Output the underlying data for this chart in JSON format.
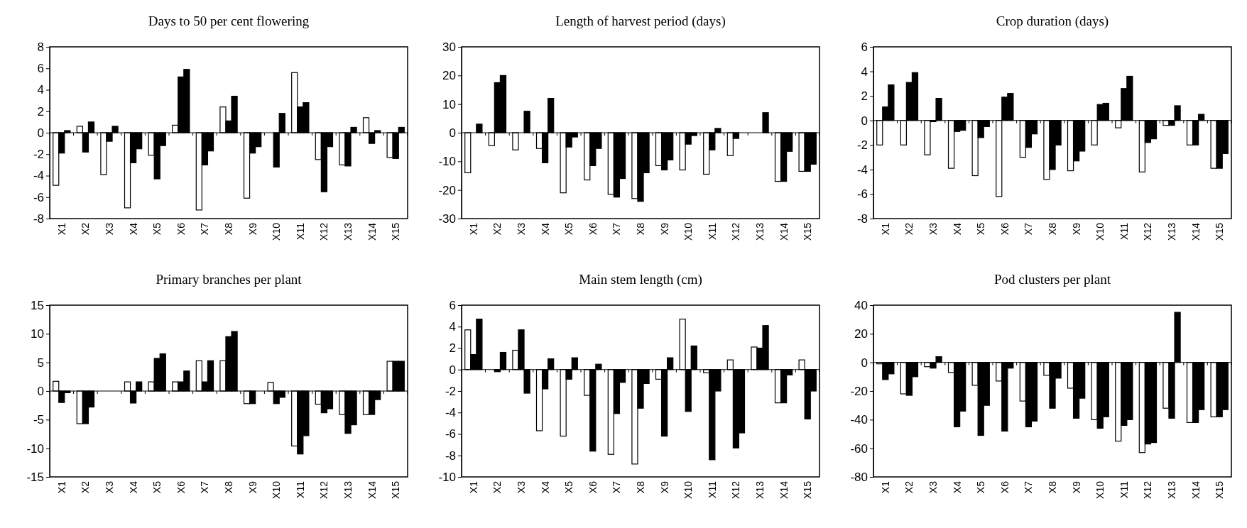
{
  "chart_data": [
    {
      "type": "bar",
      "title": "Days to 50 per cent flowering",
      "categories": [
        "X1",
        "X2",
        "X3",
        "X4",
        "X5",
        "X6",
        "X7",
        "X8",
        "X9",
        "X10",
        "X11",
        "X12",
        "X13",
        "X14",
        "X15"
      ],
      "ylim": [
        -8,
        8
      ],
      "yticks": [
        -8,
        -6,
        -4,
        -2,
        0,
        2,
        4,
        6,
        8
      ],
      "series": [
        {
          "color": "#ffffff",
          "values": [
            -4.9,
            0.6,
            -3.9,
            -7.0,
            -2.1,
            0.7,
            -7.2,
            2.4,
            -6.1,
            0,
            5.6,
            -2.5,
            -3.0,
            1.4,
            -2.3
          ]
        },
        {
          "color": "#000000",
          "values": [
            -1.9,
            -1.8,
            -0.8,
            -2.8,
            -4.3,
            5.2,
            -3.0,
            1.1,
            -1.9,
            -3.2,
            2.4,
            -5.5,
            -3.1,
            -1.0,
            -2.4
          ]
        },
        {
          "color": "#000000",
          "values": [
            0.2,
            1.0,
            0.6,
            -1.5,
            -1.2,
            5.9,
            -1.7,
            3.4,
            -1.3,
            1.8,
            2.8,
            -1.3,
            0.5,
            0.2,
            0.5
          ]
        }
      ]
    },
    {
      "type": "bar",
      "title": "Length of harvest period (days)",
      "categories": [
        "X1",
        "X2",
        "X3",
        "X4",
        "X5",
        "X6",
        "X7",
        "X8",
        "X9",
        "X10",
        "X11",
        "X12",
        "X13",
        "X14",
        "X15"
      ],
      "ylim": [
        -30,
        30
      ],
      "yticks": [
        -30,
        -20,
        -10,
        0,
        10,
        20,
        30
      ],
      "series": [
        {
          "color": "#ffffff",
          "values": [
            -14,
            -4.5,
            -6,
            -5.5,
            -21,
            -16.5,
            -21.5,
            -23,
            -11.5,
            -13,
            -14.5,
            -8,
            0,
            -17,
            -13.5
          ]
        },
        {
          "color": "#000000",
          "values": [
            0,
            17.5,
            0,
            -10.5,
            -5,
            -11.5,
            -22.5,
            -24,
            -13,
            -4,
            -6,
            -2,
            0,
            -17,
            -13.5
          ]
        },
        {
          "color": "#000000",
          "values": [
            3,
            20,
            7.5,
            12,
            -1.5,
            -5.5,
            -16,
            -14,
            -9.5,
            -1,
            1.5,
            0,
            7,
            -6.5,
            -11
          ]
        }
      ]
    },
    {
      "type": "bar",
      "title": "Crop duration (days)",
      "categories": [
        "X1",
        "X2",
        "X3",
        "X4",
        "X5",
        "X6",
        "X7",
        "X8",
        "X9",
        "X10",
        "X11",
        "X12",
        "X13",
        "X14",
        "X15"
      ],
      "ylim": [
        -8,
        6
      ],
      "yticks": [
        -8,
        -6,
        -4,
        -2,
        0,
        2,
        4,
        6
      ],
      "series": [
        {
          "color": "#ffffff",
          "values": [
            -2.0,
            -2.0,
            -2.8,
            -3.9,
            -4.5,
            -6.2,
            -3.0,
            -4.8,
            -4.1,
            -2.0,
            -0.6,
            -4.2,
            -0.4,
            -2.0,
            -3.9
          ]
        },
        {
          "color": "#000000",
          "values": [
            1.1,
            3.1,
            -0.1,
            -0.9,
            -1.4,
            1.9,
            -2.2,
            -4.0,
            -3.3,
            1.3,
            2.6,
            -1.8,
            -0.4,
            -2.0,
            -3.9
          ]
        },
        {
          "color": "#000000",
          "values": [
            2.9,
            3.9,
            1.8,
            -0.8,
            -0.5,
            2.2,
            -1.1,
            -2.0,
            -2.5,
            1.4,
            3.6,
            -1.5,
            1.2,
            0.5,
            -2.7
          ]
        }
      ]
    },
    {
      "type": "bar",
      "title": "Primary branches per plant",
      "categories": [
        "X1",
        "X2",
        "X3",
        "X4",
        "X5",
        "X6",
        "X7",
        "X8",
        "X9",
        "X10",
        "X11",
        "X12",
        "X13",
        "X14",
        "X15"
      ],
      "ylim": [
        -15,
        15
      ],
      "yticks": [
        -15,
        -10,
        -5,
        0,
        5,
        10,
        15
      ],
      "series": [
        {
          "color": "#ffffff",
          "values": [
            1.7,
            -5.7,
            0,
            1.6,
            1.6,
            1.6,
            5.3,
            5.3,
            -2.2,
            1.5,
            -9.6,
            -2.3,
            -4.1,
            -4.1,
            5.2
          ]
        },
        {
          "color": "#000000",
          "values": [
            -2.0,
            -5.7,
            0,
            -2.1,
            5.7,
            1.6,
            1.6,
            9.5,
            -2.2,
            -2.2,
            -11.0,
            -3.8,
            -7.4,
            -4.1,
            5.2
          ]
        },
        {
          "color": "#000000",
          "values": [
            -0.3,
            -2.8,
            0,
            1.6,
            6.5,
            3.5,
            5.3,
            10.4,
            0,
            -1.1,
            -7.8,
            -3.1,
            -5.9,
            -1.5,
            5.2
          ]
        }
      ]
    },
    {
      "type": "bar",
      "title": "Main stem length (cm)",
      "categories": [
        "X1",
        "X2",
        "X3",
        "X4",
        "X5",
        "X6",
        "X7",
        "X8",
        "X9",
        "X10",
        "X11",
        "X12",
        "X13",
        "X14",
        "X15"
      ],
      "ylim": [
        -10,
        6
      ],
      "yticks": [
        -10,
        -8,
        -6,
        -4,
        -2,
        0,
        2,
        4,
        6
      ],
      "series": [
        {
          "color": "#ffffff",
          "values": [
            3.7,
            0,
            1.8,
            -5.7,
            -6.2,
            -2.4,
            -7.9,
            -8.8,
            -0.9,
            4.7,
            -0.3,
            0.9,
            2.1,
            -3.1,
            0.9
          ]
        },
        {
          "color": "#000000",
          "values": [
            1.4,
            -0.2,
            3.7,
            -1.8,
            -0.9,
            -7.6,
            -4.1,
            -3.6,
            -6.2,
            -3.9,
            -8.4,
            -7.3,
            2.0,
            -3.1,
            -4.6
          ]
        },
        {
          "color": "#000000",
          "values": [
            4.7,
            1.6,
            -2.2,
            1.0,
            1.1,
            0.5,
            -1.2,
            -1.3,
            1.1,
            2.2,
            -2.0,
            -5.9,
            4.1,
            -0.5,
            -2.0
          ]
        }
      ]
    },
    {
      "type": "bar",
      "title": "Pod clusters per plant",
      "categories": [
        "X1",
        "X2",
        "X3",
        "X4",
        "X5",
        "X6",
        "X7",
        "X8",
        "X9",
        "X10",
        "X11",
        "X12",
        "X13",
        "X14",
        "X15"
      ],
      "ylim": [
        -80,
        40
      ],
      "yticks": [
        -80,
        -60,
        -40,
        -20,
        0,
        20,
        40
      ],
      "series": [
        {
          "color": "#ffffff",
          "values": [
            -1,
            -22,
            -3,
            -7,
            -16,
            -13,
            -27,
            -9,
            -18,
            -40,
            -55,
            -63,
            -32,
            -42,
            -38
          ]
        },
        {
          "color": "#000000",
          "values": [
            -12,
            -23,
            -4,
            -45,
            -51,
            -48,
            -45,
            -32,
            -39,
            -46,
            -44,
            -57,
            -39,
            -42,
            -38
          ]
        },
        {
          "color": "#000000",
          "values": [
            -8,
            -10,
            4,
            -34,
            -30,
            -4,
            -41,
            -11,
            -25,
            -38,
            -40,
            -56,
            35,
            -33,
            -33
          ]
        }
      ]
    }
  ]
}
